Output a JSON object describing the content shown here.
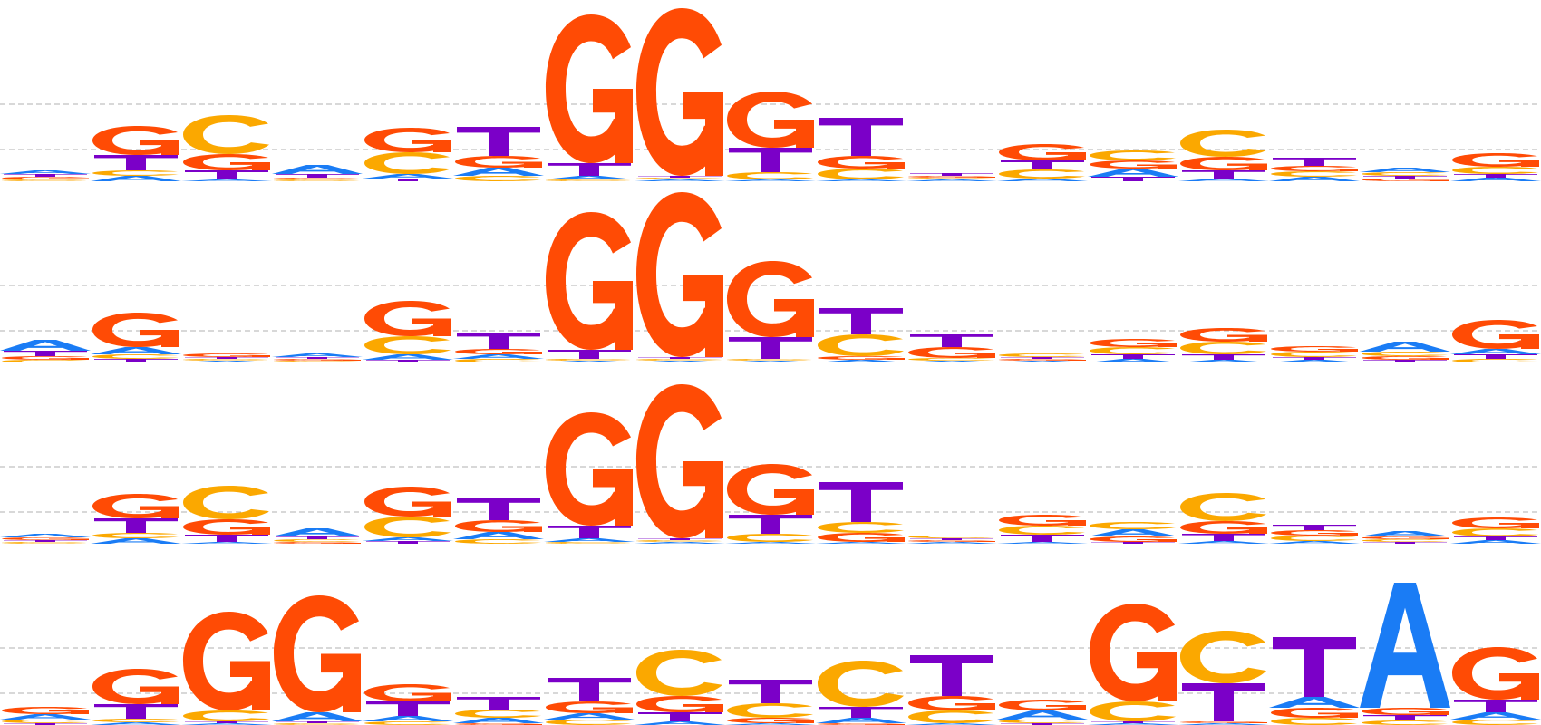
{
  "colors": {
    "A": "#1a7cf5",
    "C": "#fba800",
    "G": "#ff4b05",
    "T": "#7b00c8",
    "gridline": "#b0b0b0"
  },
  "motif_logos": [
    {
      "name": "logo-row-1",
      "columns": [
        {
          "A": 0.04,
          "C": 0.02,
          "G": 0.03,
          "T": 0.03
        },
        {
          "A": 0.06,
          "C": 0.06,
          "G": 0.32,
          "T": 0.17
        },
        {
          "A": 0.02,
          "C": 0.43,
          "G": 0.18,
          "T": 0.1
        },
        {
          "A": 0.1,
          "C": 0.02,
          "G": 0.02,
          "T": 0.04
        },
        {
          "A": 0.05,
          "C": 0.24,
          "G": 0.27,
          "T": 0.03
        },
        {
          "A": 0.09,
          "C": 0.06,
          "G": 0.13,
          "T": 0.32
        },
        {
          "A": 0.04,
          "C": 0.02,
          "G": 1.64,
          "T": 0.14
        },
        {
          "A": 0.02,
          "C": 0.02,
          "G": 1.85,
          "T": 0.02
        },
        {
          "A": 0.02,
          "C": 0.08,
          "G": 0.62,
          "T": 0.27
        },
        {
          "A": 0.02,
          "C": 0.12,
          "G": 0.14,
          "T": 0.42
        },
        {
          "A": 0.02,
          "C": 0.02,
          "G": 0.02,
          "T": 0.03
        },
        {
          "A": 0.03,
          "C": 0.1,
          "G": 0.18,
          "T": 0.1
        },
        {
          "A": 0.09,
          "C": 0.11,
          "G": 0.09,
          "T": 0.05
        },
        {
          "A": 0.03,
          "C": 0.3,
          "G": 0.15,
          "T": 0.09
        },
        {
          "A": 0.05,
          "C": 0.06,
          "G": 0.06,
          "T": 0.09
        },
        {
          "A": 0.05,
          "C": 0.04,
          "G": 0.03,
          "T": 0.03
        },
        {
          "A": 0.04,
          "C": 0.08,
          "G": 0.15,
          "T": 0.04
        }
      ]
    },
    {
      "name": "logo-row-2",
      "columns": [
        {
          "A": 0.12,
          "C": 0.03,
          "G": 0.04,
          "T": 0.06
        },
        {
          "A": 0.08,
          "C": 0.05,
          "G": 0.38,
          "T": 0.04
        },
        {
          "A": 0.02,
          "C": 0.02,
          "G": 0.04,
          "T": 0.02
        },
        {
          "A": 0.04,
          "C": 0.02,
          "G": 0.02,
          "T": 0.02
        },
        {
          "A": 0.06,
          "C": 0.2,
          "G": 0.39,
          "T": 0.03
        },
        {
          "A": 0.05,
          "C": 0.04,
          "G": 0.06,
          "T": 0.17
        },
        {
          "A": 0.02,
          "C": 0.02,
          "G": 1.52,
          "T": 0.1
        },
        {
          "A": 0.02,
          "C": 0.02,
          "G": 1.82,
          "T": 0.02
        },
        {
          "A": 0.02,
          "C": 0.02,
          "G": 0.84,
          "T": 0.24
        },
        {
          "A": 0.03,
          "C": 0.24,
          "G": 0.04,
          "T": 0.29
        },
        {
          "A": 0.02,
          "C": 0.03,
          "G": 0.12,
          "T": 0.14
        },
        {
          "A": 0.02,
          "C": 0.04,
          "G": 0.02,
          "T": 0.02
        },
        {
          "A": 0.04,
          "C": 0.08,
          "G": 0.09,
          "T": 0.05
        },
        {
          "A": 0.03,
          "C": 0.14,
          "G": 0.15,
          "T": 0.06
        },
        {
          "A": 0.03,
          "C": 0.06,
          "G": 0.06,
          "T": 0.03
        },
        {
          "A": 0.11,
          "C": 0.05,
          "G": 0.04,
          "T": 0.03
        },
        {
          "A": 0.06,
          "C": 0.04,
          "G": 0.32,
          "T": 0.05
        }
      ]
    },
    {
      "name": "logo-row-3",
      "columns": [
        {
          "A": 0.04,
          "C": 0.02,
          "G": 0.03,
          "T": 0.02
        },
        {
          "A": 0.06,
          "C": 0.06,
          "G": 0.27,
          "T": 0.16
        },
        {
          "A": 0.02,
          "C": 0.37,
          "G": 0.17,
          "T": 0.08
        },
        {
          "A": 0.09,
          "C": 0.03,
          "G": 0.02,
          "T": 0.03
        },
        {
          "A": 0.04,
          "C": 0.23,
          "G": 0.33,
          "T": 0.03
        },
        {
          "A": 0.08,
          "C": 0.05,
          "G": 0.13,
          "T": 0.24
        },
        {
          "A": 0.04,
          "C": 0.02,
          "G": 1.25,
          "T": 0.14
        },
        {
          "A": 0.02,
          "C": 0.02,
          "G": 1.7,
          "T": 0.02
        },
        {
          "A": 0.02,
          "C": 0.09,
          "G": 0.56,
          "T": 0.21
        },
        {
          "A": 0.02,
          "C": 0.12,
          "G": 0.1,
          "T": 0.44
        },
        {
          "A": 0.02,
          "C": 0.03,
          "G": 0.02,
          "T": 0.02
        },
        {
          "A": 0.02,
          "C": 0.1,
          "G": 0.12,
          "T": 0.08
        },
        {
          "A": 0.08,
          "C": 0.08,
          "G": 0.06,
          "T": 0.02
        },
        {
          "A": 0.03,
          "C": 0.31,
          "G": 0.14,
          "T": 0.08
        },
        {
          "A": 0.03,
          "C": 0.06,
          "G": 0.06,
          "T": 0.06
        },
        {
          "A": 0.06,
          "C": 0.03,
          "G": 0.03,
          "T": 0.02
        },
        {
          "A": 0.04,
          "C": 0.09,
          "G": 0.12,
          "T": 0.04
        }
      ]
    },
    {
      "name": "logo-row-4",
      "columns": [
        {
          "A": 0.06,
          "C": 0.04,
          "G": 0.08,
          "T": 0.02
        },
        {
          "A": 0.03,
          "C": 0.04,
          "G": 0.39,
          "T": 0.16
        },
        {
          "A": 0.02,
          "C": 0.12,
          "G": 1.09,
          "T": 0.02
        },
        {
          "A": 0.1,
          "C": 0.02,
          "G": 1.29,
          "T": 0.02
        },
        {
          "A": 0.06,
          "C": 0.04,
          "G": 0.19,
          "T": 0.16
        },
        {
          "A": 0.06,
          "C": 0.09,
          "G": 0.02,
          "T": 0.14
        },
        {
          "A": 0.07,
          "C": 0.06,
          "G": 0.13,
          "T": 0.26
        },
        {
          "A": 0.04,
          "C": 0.51,
          "G": 0.18,
          "T": 0.1
        },
        {
          "A": 0.02,
          "C": 0.16,
          "G": 0.06,
          "T": 0.26
        },
        {
          "A": 0.06,
          "C": 0.51,
          "G": 0.02,
          "T": 0.12
        },
        {
          "A": 0.02,
          "C": 0.14,
          "G": 0.16,
          "T": 0.45
        },
        {
          "A": 0.1,
          "C": 0.04,
          "G": 0.12,
          "T": 0.02
        },
        {
          "A": 0.02,
          "C": 0.22,
          "G": 1.08,
          "T": 0.02
        },
        {
          "A": 0.02,
          "C": 0.58,
          "G": 0.02,
          "T": 0.42
        },
        {
          "A": 0.12,
          "C": 0.08,
          "G": 0.11,
          "T": 0.66
        },
        {
          "A": 1.38,
          "C": 0.05,
          "G": 0.08,
          "T": 0.06
        },
        {
          "A": 0.08,
          "C": 0.06,
          "G": 0.58,
          "T": 0.14
        }
      ]
    }
  ]
}
